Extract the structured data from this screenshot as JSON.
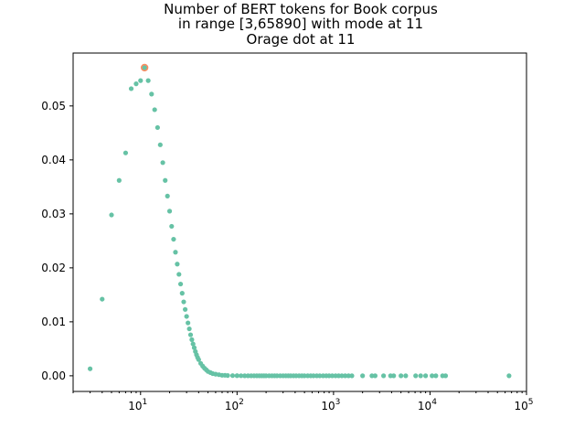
{
  "chart_data": {
    "type": "scatter",
    "title_lines": [
      "Number of BERT tokens for Book corpus",
      "in range [3,65890] with mode at 11",
      "Orage dot at 11"
    ],
    "xlabel": "",
    "ylabel": "",
    "x_scale": "log",
    "xlim": [
      2,
      100000
    ],
    "ylim": [
      -0.0029,
      0.0598
    ],
    "x_ticks": [
      {
        "value": 10,
        "base": "10",
        "exp": "1"
      },
      {
        "value": 100,
        "base": "10",
        "exp": "2"
      },
      {
        "value": 1000,
        "base": "10",
        "exp": "3"
      },
      {
        "value": 10000,
        "base": "10",
        "exp": "4"
      },
      {
        "value": 100000,
        "base": "10",
        "exp": "5"
      }
    ],
    "y_ticks": [
      {
        "value": 0.0,
        "label": "0.00"
      },
      {
        "value": 0.01,
        "label": "0.01"
      },
      {
        "value": 0.02,
        "label": "0.02"
      },
      {
        "value": 0.03,
        "label": "0.03"
      },
      {
        "value": 0.04,
        "label": "0.04"
      },
      {
        "value": 0.05,
        "label": "0.05"
      }
    ],
    "grid": false,
    "legend": "none",
    "series_color": "#66c2a5",
    "highlight_color": "#fc8d62",
    "points": [
      [
        3,
        0.0013
      ],
      [
        4,
        0.0142
      ],
      [
        5,
        0.0298
      ],
      [
        6,
        0.0362
      ],
      [
        7,
        0.0413
      ],
      [
        8,
        0.0532
      ],
      [
        9,
        0.0541
      ],
      [
        10,
        0.0547
      ],
      [
        11,
        0.0571
      ],
      [
        12,
        0.0547
      ],
      [
        13,
        0.0522
      ],
      [
        14,
        0.0493
      ],
      [
        15,
        0.046
      ],
      [
        16,
        0.0428
      ],
      [
        17,
        0.0395
      ],
      [
        18,
        0.0362
      ],
      [
        19,
        0.0333
      ],
      [
        20,
        0.0305
      ],
      [
        21,
        0.0277
      ],
      [
        22,
        0.0253
      ],
      [
        23,
        0.0229
      ],
      [
        24,
        0.0207
      ],
      [
        25,
        0.0188
      ],
      [
        26,
        0.017
      ],
      [
        27,
        0.0153
      ],
      [
        28,
        0.0137
      ],
      [
        29,
        0.0123
      ],
      [
        30,
        0.011
      ],
      [
        31,
        0.0098
      ],
      [
        32,
        0.0087
      ],
      [
        33,
        0.0076
      ],
      [
        34,
        0.0067
      ],
      [
        35,
        0.0059
      ],
      [
        36,
        0.0052
      ],
      [
        37,
        0.0045
      ],
      [
        38,
        0.0039
      ],
      [
        39,
        0.0034
      ],
      [
        40,
        0.003
      ],
      [
        42,
        0.0023
      ],
      [
        44,
        0.0018
      ],
      [
        46,
        0.0014
      ],
      [
        48,
        0.0011
      ],
      [
        50,
        0.0008
      ],
      [
        53,
        0.0006
      ],
      [
        56,
        0.0004
      ],
      [
        60,
        0.0003
      ],
      [
        65,
        0.0002
      ],
      [
        70,
        0.0001
      ],
      [
        75,
        0.0001
      ],
      [
        80,
        5e-05
      ],
      [
        90,
        3e-05
      ],
      [
        100,
        2e-05
      ],
      [
        110,
        1e-05
      ],
      [
        120,
        0.0
      ],
      [
        130,
        0.0
      ],
      [
        140,
        0.0
      ],
      [
        150,
        0.0
      ],
      [
        160,
        0.0
      ],
      [
        170,
        0.0
      ],
      [
        180,
        0.0
      ],
      [
        190,
        0.0
      ],
      [
        200,
        0.0
      ],
      [
        215,
        0.0
      ],
      [
        230,
        0.0
      ],
      [
        245,
        0.0
      ],
      [
        260,
        0.0
      ],
      [
        280,
        0.0
      ],
      [
        300,
        0.0
      ],
      [
        320,
        0.0
      ],
      [
        340,
        0.0
      ],
      [
        360,
        0.0
      ],
      [
        385,
        0.0
      ],
      [
        410,
        0.0
      ],
      [
        440,
        0.0
      ],
      [
        470,
        0.0
      ],
      [
        500,
        0.0
      ],
      [
        540,
        0.0
      ],
      [
        580,
        0.0
      ],
      [
        620,
        0.0
      ],
      [
        670,
        0.0
      ],
      [
        720,
        0.0
      ],
      [
        780,
        0.0
      ],
      [
        840,
        0.0
      ],
      [
        900,
        0.0
      ],
      [
        970,
        0.0
      ],
      [
        1050,
        0.0
      ],
      [
        1130,
        0.0
      ],
      [
        1220,
        0.0
      ],
      [
        1320,
        0.0
      ],
      [
        1430,
        0.0
      ],
      [
        1550,
        0.0
      ],
      [
        2000,
        0.0
      ],
      [
        2500,
        0.0
      ],
      [
        2700,
        0.0
      ],
      [
        3300,
        0.0
      ],
      [
        3900,
        0.0
      ],
      [
        4200,
        0.0
      ],
      [
        5000,
        0.0
      ],
      [
        5600,
        0.0
      ],
      [
        7100,
        0.0
      ],
      [
        8000,
        0.0
      ],
      [
        9000,
        0.0
      ],
      [
        10500,
        0.0
      ],
      [
        11500,
        0.0
      ],
      [
        13500,
        0.0
      ],
      [
        14500,
        0.0
      ],
      [
        65890,
        0.0
      ]
    ],
    "highlight_point": [
      11,
      0.0571
    ]
  }
}
